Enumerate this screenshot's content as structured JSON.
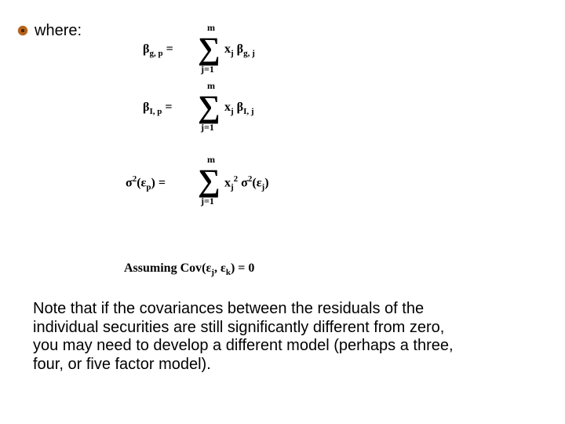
{
  "bullet": {
    "where_label": "where:",
    "icon_color_outer": "#b7641b",
    "icon_color_inner": "#4a2a0c"
  },
  "equations": {
    "sum_symbol": "∑",
    "upper": "m",
    "lower": "j=1",
    "eq1": {
      "lhs_html": "β<sub>g, p</sub>&nbsp;=",
      "rhs_html": "x<sub>j</sub>&nbsp;β<sub>g, j</sub>"
    },
    "eq2": {
      "lhs_html": "β<sub>I, p</sub>&nbsp;=",
      "rhs_html": "x<sub>j</sub>&nbsp;β<sub>I, j</sub>"
    },
    "eq3": {
      "lhs_html": "σ<sup>2</sup>(ε<sub>p</sub>)&nbsp;=",
      "rhs_html": "x<sub>j</sub><sup>2</sup>&nbsp;σ<sup>2</sup>(ε<sub>j</sub>)"
    },
    "assumption_html": "Assuming Cov(ε<sub>j</sub>, ε<sub>k</sub>) = 0"
  },
  "note": "Note that if the covariances between the residuals of the individual securities are still significantly different from zero, you may need to develop a different model (perhaps a three, four, or five factor model)."
}
